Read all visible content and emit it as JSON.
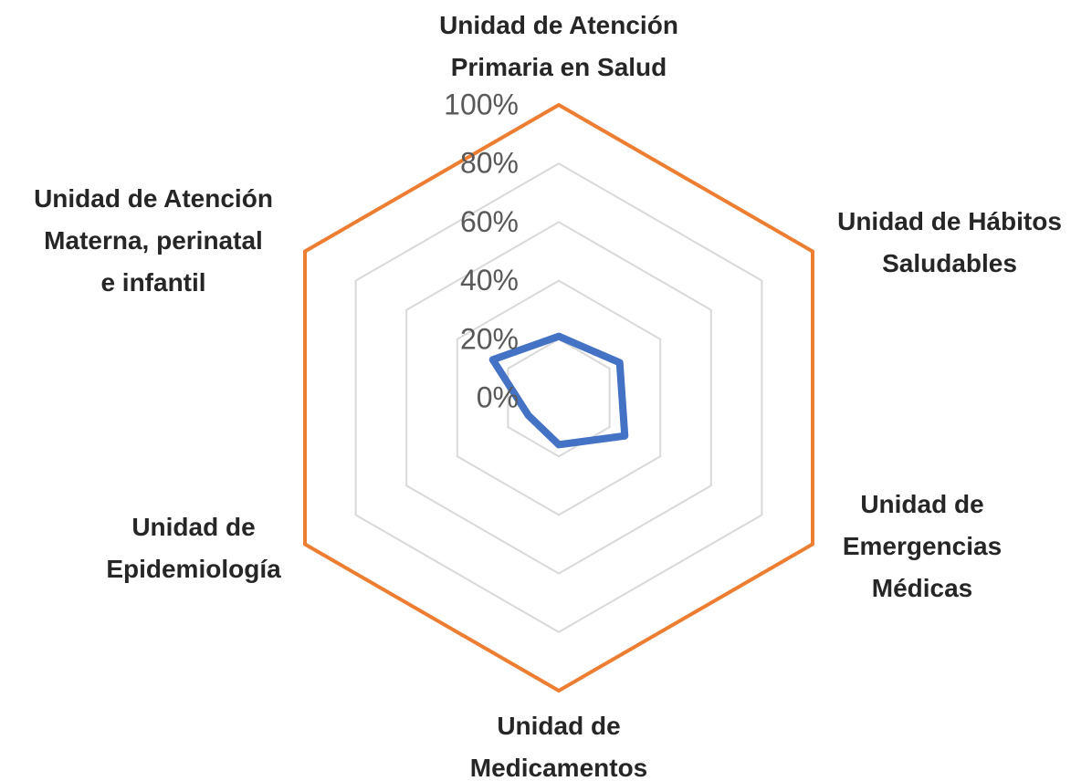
{
  "chart_data": {
    "type": "radar",
    "categories": [
      [
        "Unidad de Atención",
        "Primaria en Salud"
      ],
      [
        "Unidad de Hábitos",
        "Saludables"
      ],
      [
        "Unidad de",
        "Emergencias",
        "Médicas"
      ],
      [
        "Unidad de",
        "Medicamentos"
      ],
      [
        "Unidad de",
        "Epidemiología"
      ],
      [
        "Unidad de Atención",
        "Materna, perinatal",
        "e infantil"
      ]
    ],
    "series": [
      {
        "color": "#ed7d31",
        "values": [
          100,
          100,
          100,
          100,
          100,
          100
        ]
      },
      {
        "color": "#4472c4",
        "values": [
          21,
          24,
          26,
          16,
          12,
          26
        ]
      }
    ],
    "rlim": [
      0,
      100
    ],
    "rticks": [
      {
        "value": 0,
        "label": "0%"
      },
      {
        "value": 20,
        "label": "20%"
      },
      {
        "value": 40,
        "label": "40%"
      },
      {
        "value": 60,
        "label": "60%"
      },
      {
        "value": 80,
        "label": "80%"
      },
      {
        "value": 100,
        "label": "100%"
      }
    ],
    "grid": true
  }
}
